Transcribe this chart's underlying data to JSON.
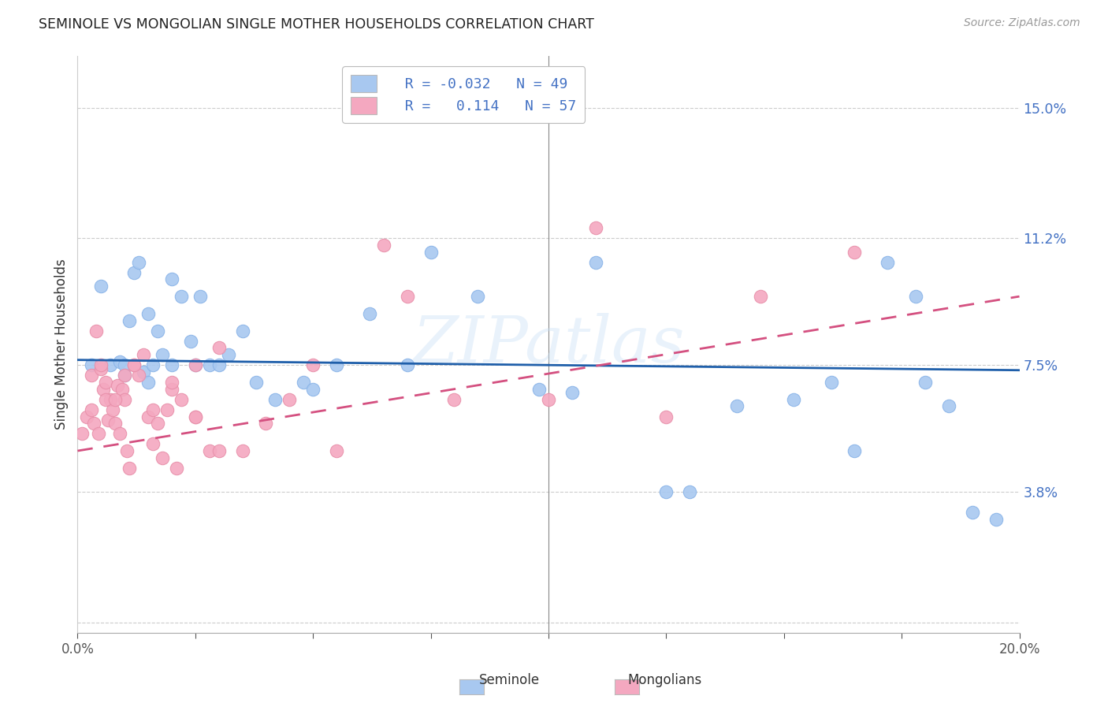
{
  "title": "SEMINOLE VS MONGOLIAN SINGLE MOTHER HOUSEHOLDS CORRELATION CHART",
  "source": "Source: ZipAtlas.com",
  "ylabel": "Single Mother Households",
  "xlim": [
    0.0,
    20.0
  ],
  "ylim": [
    -0.3,
    16.5
  ],
  "yticks": [
    0.0,
    3.8,
    7.5,
    11.2,
    15.0
  ],
  "ytick_labels": [
    "",
    "3.8%",
    "7.5%",
    "11.2%",
    "15.0%"
  ],
  "xticks": [
    0.0,
    2.5,
    5.0,
    7.5,
    10.0,
    12.5,
    15.0,
    17.5,
    20.0
  ],
  "xtick_labels": [
    "0.0%",
    "",
    "",
    "",
    "",
    "",
    "",
    "",
    "20.0%"
  ],
  "seminole_color": "#A8C8F0",
  "mongolian_color": "#F4A8C0",
  "line1_color": "#1f5faa",
  "line2_color": "#d45080",
  "watermark": "ZIPatlas",
  "seminole_x": [
    0.3,
    0.5,
    0.7,
    0.9,
    1.0,
    1.1,
    1.2,
    1.3,
    1.4,
    1.5,
    1.6,
    1.7,
    1.8,
    2.0,
    2.2,
    2.4,
    2.6,
    2.8,
    3.0,
    3.2,
    3.5,
    3.8,
    4.2,
    4.8,
    5.5,
    6.2,
    7.5,
    8.5,
    9.8,
    11.0,
    12.5,
    14.0,
    15.2,
    16.5,
    17.2,
    17.8,
    18.5,
    19.0,
    19.5,
    1.0,
    1.5,
    2.0,
    2.5,
    5.0,
    7.0,
    10.5,
    13.0,
    16.0,
    18.0
  ],
  "seminole_y": [
    7.5,
    9.8,
    7.5,
    7.6,
    7.5,
    8.8,
    10.2,
    10.5,
    7.3,
    9.0,
    7.5,
    8.5,
    7.8,
    10.0,
    9.5,
    8.2,
    9.5,
    7.5,
    7.5,
    7.8,
    8.5,
    7.0,
    6.5,
    7.0,
    7.5,
    9.0,
    10.8,
    9.5,
    6.8,
    10.5,
    3.8,
    6.3,
    6.5,
    5.0,
    10.5,
    9.5,
    6.3,
    3.2,
    3.0,
    7.2,
    7.0,
    7.5,
    7.5,
    6.8,
    7.5,
    6.7,
    3.8,
    7.0,
    7.0
  ],
  "mongolian_x": [
    0.1,
    0.2,
    0.3,
    0.35,
    0.4,
    0.45,
    0.5,
    0.55,
    0.6,
    0.65,
    0.7,
    0.75,
    0.8,
    0.85,
    0.9,
    0.95,
    1.0,
    1.05,
    1.1,
    1.2,
    1.3,
    1.4,
    1.5,
    1.6,
    1.7,
    1.8,
    1.9,
    2.0,
    2.1,
    2.2,
    2.5,
    2.5,
    2.8,
    3.0,
    3.5,
    4.0,
    4.5,
    5.0,
    5.5,
    6.5,
    7.0,
    8.0,
    10.0,
    11.0,
    12.5,
    14.5,
    16.5,
    0.3,
    0.5,
    0.6,
    0.8,
    1.0,
    1.2,
    1.6,
    2.0,
    2.5,
    3.0
  ],
  "mongolian_y": [
    5.5,
    6.0,
    7.2,
    5.8,
    8.5,
    5.5,
    7.4,
    6.8,
    7.0,
    5.9,
    6.5,
    6.2,
    5.8,
    6.9,
    5.5,
    6.8,
    6.5,
    5.0,
    4.5,
    7.5,
    7.2,
    7.8,
    6.0,
    5.2,
    5.8,
    4.8,
    6.2,
    6.8,
    4.5,
    6.5,
    7.5,
    6.0,
    5.0,
    8.0,
    5.0,
    5.8,
    6.5,
    7.5,
    5.0,
    11.0,
    9.5,
    6.5,
    6.5,
    11.5,
    6.0,
    9.5,
    10.8,
    6.2,
    7.5,
    6.5,
    6.5,
    7.2,
    7.5,
    6.2,
    7.0,
    6.0,
    5.0
  ],
  "line1_x0": 0.0,
  "line1_y0": 7.65,
  "line1_x1": 20.0,
  "line1_y1": 7.35,
  "line2_x0": 0.0,
  "line2_y0": 5.0,
  "line2_x1": 20.0,
  "line2_y1": 9.5
}
